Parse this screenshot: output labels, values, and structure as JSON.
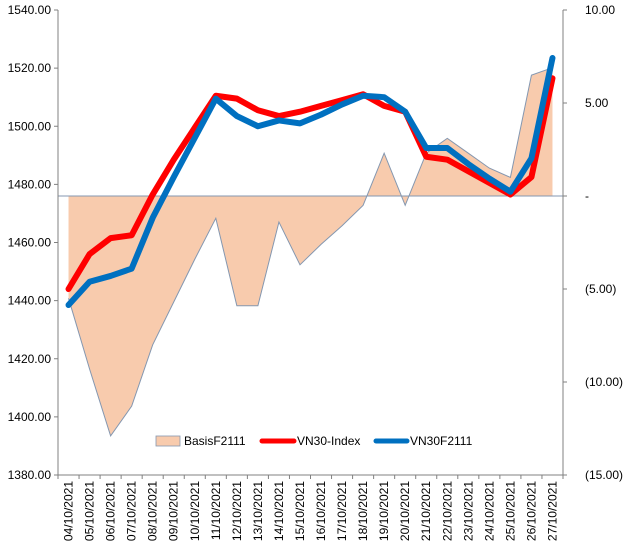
{
  "chart_data": {
    "type": "line",
    "categories": [
      "04/10/2021",
      "05/10/2021",
      "06/10/2021",
      "07/10/2021",
      "08/10/2021",
      "09/10/2021",
      "10/10/2021",
      "11/10/2021",
      "12/10/2021",
      "13/10/2021",
      "14/10/2021",
      "15/10/2021",
      "16/10/2021",
      "17/10/2021",
      "18/10/2021",
      "19/10/2021",
      "20/10/2021",
      "21/10/2021",
      "22/10/2021",
      "23/10/2021",
      "24/10/2021",
      "25/10/2021",
      "26/10/2021",
      "27/10/2021"
    ],
    "left_axis": {
      "ylim": [
        1380,
        1540
      ],
      "ticks": [
        1380,
        1400,
        1420,
        1440,
        1460,
        1480,
        1500,
        1520,
        1540
      ],
      "tick_labels": [
        "1380.00",
        "1400.00",
        "1420.00",
        "1440.00",
        "1460.00",
        "1480.00",
        "1500.00",
        "1520.00",
        "1540.00"
      ]
    },
    "right_axis": {
      "ylim": [
        -15,
        10
      ],
      "ticks": [
        -15,
        -10,
        -5,
        0,
        5,
        10
      ],
      "tick_labels": [
        "(15.00)",
        "(10.00)",
        "(5.00)",
        "-",
        "5.00",
        "10.00"
      ]
    },
    "series": [
      {
        "name": "BasisF2111",
        "type": "area",
        "axis": "right",
        "color": "#f8cbad",
        "stroke": "#8497b0",
        "values": [
          -5.5,
          -9.3,
          -12.9,
          -11.3,
          -8,
          -5.7,
          -3.4,
          -1.2,
          -5.9,
          -5.9,
          -1.4,
          -3.7,
          -2.6,
          -1.6,
          -0.5,
          2.3,
          -0.5,
          2.3,
          3.1,
          2.3,
          1.5,
          1,
          6.5,
          6.9
        ]
      },
      {
        "name": "VN30-Index",
        "type": "line",
        "axis": "left",
        "color": "#ff0000",
        "values": [
          1444,
          1456,
          1461.5,
          1462.5,
          1476.5,
          1488.5,
          1499.5,
          1510.5,
          1509.5,
          1505.5,
          1503.5,
          1505,
          1507,
          1509,
          1511,
          1507,
          1505,
          1489.5,
          1488.5,
          1484.5,
          1480.5,
          1476.5,
          1482.5,
          1516.5
        ]
      },
      {
        "name": "VN30F2111",
        "type": "line",
        "axis": "left",
        "color": "#0070c0",
        "values": [
          1438.5,
          1446.5,
          1448.5,
          1451,
          1468.5,
          1482.5,
          1496,
          1509.5,
          1503.5,
          1500,
          1502,
          1501,
          1504,
          1507.5,
          1510.5,
          1510,
          1505,
          1492.5,
          1492.5,
          1487,
          1482,
          1477.5,
          1489,
          1523.5
        ]
      }
    ],
    "legend": {
      "placement": "bottom",
      "entries": [
        "BasisF2111",
        "VN30-Index",
        "VN30F2111"
      ]
    },
    "grid": false
  }
}
